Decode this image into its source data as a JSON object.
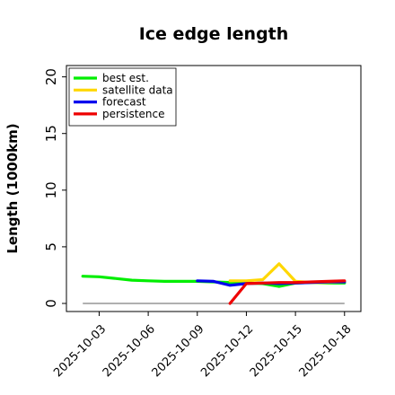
{
  "chart_data": {
    "type": "line",
    "title": "Ice edge length",
    "xlabel": "",
    "ylabel": "Length (1000km)",
    "ylim": [
      0,
      21
    ],
    "xlim": [
      "2025-10-01",
      "2025-10-19"
    ],
    "yticks": [
      "0",
      "5",
      "10",
      "15",
      "20"
    ],
    "xticks": [
      "2025-10-03",
      "2025-10-06",
      "2025-10-09",
      "2025-10-12",
      "2025-10-15",
      "2025-10-18"
    ],
    "highlighted_xtick": "2025-10-09",
    "highlight_color": "#228B22",
    "grid": false,
    "legend_position": "top-left",
    "reference_line": {
      "y": 0,
      "color": "#808080"
    },
    "series": [
      {
        "name": "best est.",
        "color": "#00ee00",
        "points": [
          [
            "2025-10-02",
            2.4
          ],
          [
            "2025-10-03",
            2.35
          ],
          [
            "2025-10-04",
            2.2
          ],
          [
            "2025-10-05",
            2.05
          ],
          [
            "2025-10-06",
            2.0
          ],
          [
            "2025-10-07",
            1.95
          ],
          [
            "2025-10-08",
            1.95
          ],
          [
            "2025-10-09",
            1.95
          ],
          [
            "2025-10-12",
            1.8
          ],
          [
            "2025-10-13",
            1.75
          ],
          [
            "2025-10-14",
            1.5
          ],
          [
            "2025-10-15",
            1.8
          ],
          [
            "2025-10-16",
            1.85
          ],
          [
            "2025-10-17",
            1.8
          ],
          [
            "2025-10-18",
            1.8
          ]
        ]
      },
      {
        "name": "satellite data",
        "color": "#ffd700",
        "points": [
          [
            "2025-10-11",
            2.0
          ],
          [
            "2025-10-12",
            2.0
          ],
          [
            "2025-10-13",
            2.1
          ],
          [
            "2025-10-14",
            3.5
          ],
          [
            "2025-10-15",
            1.95
          ],
          [
            "2025-10-16",
            1.85
          ],
          [
            "2025-10-17",
            1.85
          ],
          [
            "2025-10-18",
            1.9
          ]
        ]
      },
      {
        "name": "forecast",
        "color": "#0000ee",
        "points": [
          [
            "2025-10-09",
            2.0
          ],
          [
            "2025-10-10",
            1.95
          ],
          [
            "2025-10-11",
            1.6
          ],
          [
            "2025-10-12",
            1.75
          ],
          [
            "2025-10-13",
            1.8
          ],
          [
            "2025-10-14",
            1.75
          ],
          [
            "2025-10-15",
            1.8
          ],
          [
            "2025-10-16",
            1.85
          ],
          [
            "2025-10-17",
            1.9
          ],
          [
            "2025-10-18",
            1.9
          ]
        ]
      },
      {
        "name": "persistence",
        "color": "#ee0000",
        "points": [
          [
            "2025-10-11",
            0.0
          ],
          [
            "2025-10-12",
            1.75
          ],
          [
            "2025-10-13",
            1.8
          ],
          [
            "2025-10-14",
            1.85
          ],
          [
            "2025-10-15",
            1.85
          ],
          [
            "2025-10-16",
            1.9
          ],
          [
            "2025-10-17",
            1.95
          ],
          [
            "2025-10-18",
            2.0
          ]
        ]
      }
    ]
  }
}
